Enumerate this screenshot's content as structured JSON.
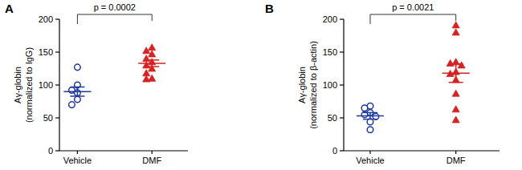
{
  "chart_data": [
    {
      "type": "dot",
      "panel_label": "A",
      "ylabel": [
        "Aγ-globin",
        "(normalized to IgG)"
      ],
      "categories": [
        "Vehicle",
        "DMF"
      ],
      "ylim": [
        0,
        200
      ],
      "yticks": [
        0,
        50,
        100,
        150,
        200
      ],
      "annotation": "p = 0.0002",
      "groups": [
        {
          "color": "#1f3a9a",
          "marker": "circle-open",
          "values": [
            127,
            100,
            92,
            88,
            78,
            70
          ],
          "mean": 90,
          "error": 7
        },
        {
          "color": "#d62222",
          "marker": "triangle",
          "values": [
            157,
            152,
            147,
            140,
            135,
            130,
            125,
            118,
            110,
            109
          ],
          "mean": 133,
          "error": 5
        }
      ]
    },
    {
      "type": "dot",
      "panel_label": "B",
      "ylabel": [
        "Aγ-globin",
        "(normalized to β-actin)"
      ],
      "categories": [
        "Vehicle",
        "DMF"
      ],
      "ylim": [
        0,
        200
      ],
      "yticks": [
        0,
        50,
        100,
        150,
        200
      ],
      "annotation": "p = 0.0021",
      "groups": [
        {
          "color": "#1f3a9a",
          "marker": "circle-open",
          "values": [
            68,
            65,
            58,
            55,
            52,
            44,
            32
          ],
          "mean": 53,
          "error": 5
        },
        {
          "color": "#d62222",
          "marker": "triangle",
          "values": [
            191,
            180,
            135,
            133,
            130,
            120,
            117,
            108,
            87,
            63,
            47
          ],
          "mean": 118,
          "error": 14
        }
      ]
    }
  ]
}
